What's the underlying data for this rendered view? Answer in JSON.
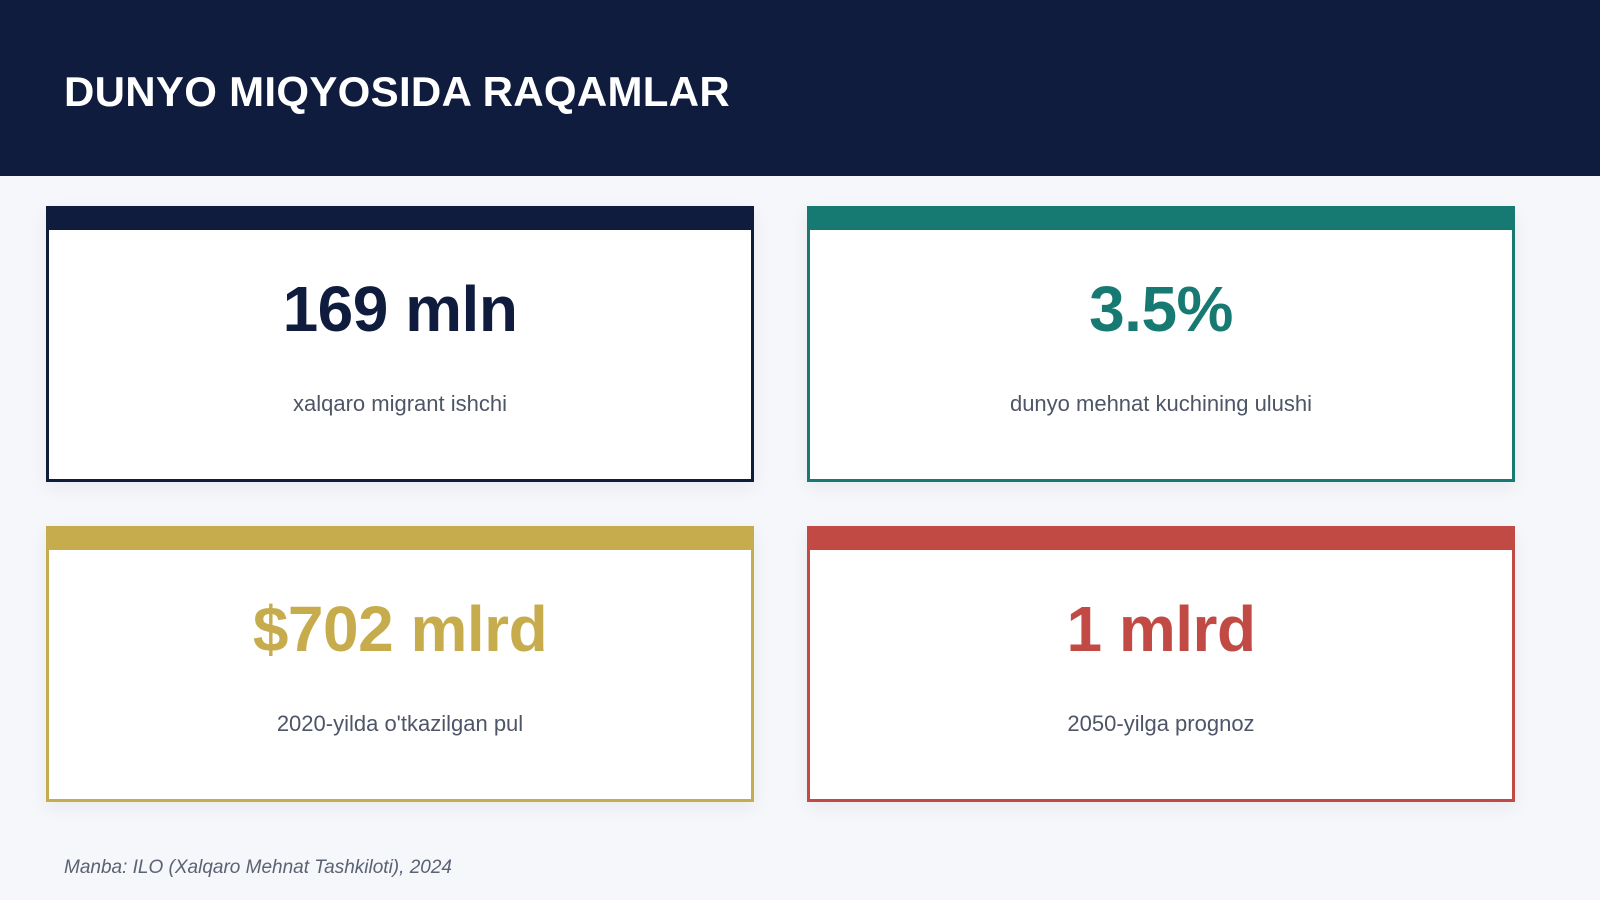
{
  "header": {
    "title": "DUNYO MIQYOSIDA RAQAMLAR"
  },
  "cards": [
    {
      "value": "169 mln",
      "label": "xalqaro migrant ishchi",
      "color": "#0f1c3e"
    },
    {
      "value": "3.5%",
      "label": "dunyo mehnat kuchining ulushi",
      "color": "#177a72"
    },
    {
      "value": "$702 mlrd",
      "label": "2020-yilda o'tkazilgan pul",
      "color": "#c7ac4d"
    },
    {
      "value": "1 mlrd",
      "label": "2050-yilga prognoz",
      "color": "#c14a45"
    }
  ],
  "footer": {
    "source": "Manba: ILO (Xalqaro Mehnat Tashkiloti), 2024"
  }
}
